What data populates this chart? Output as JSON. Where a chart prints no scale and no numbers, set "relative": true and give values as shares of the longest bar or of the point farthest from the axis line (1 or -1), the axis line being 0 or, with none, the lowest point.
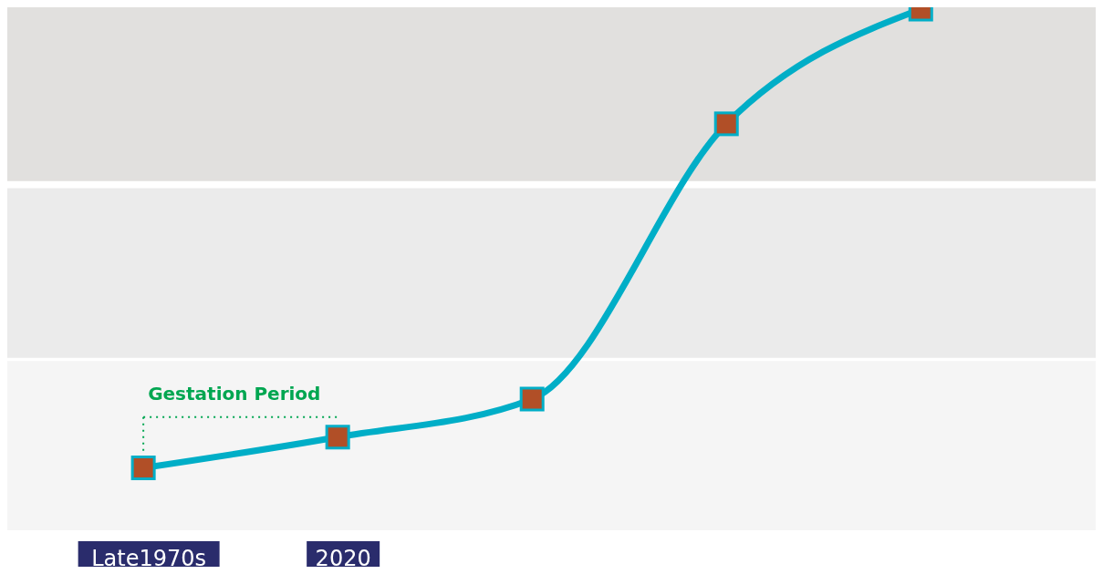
{
  "chart_data": {
    "type": "line",
    "relative": true,
    "categories": [
      "Late1970s",
      "2020",
      null,
      null,
      null
    ],
    "series": [
      {
        "color": "#00aec7",
        "values": [
          0,
          0.067,
          0.15,
          0.75,
          1
        ]
      }
    ],
    "marker": "square",
    "line_style": "solid",
    "grid": false,
    "legend": false,
    "bands": [
      {
        "axis": "y",
        "from": -0.136,
        "to": 0.233,
        "color": "#f5f5f5"
      },
      {
        "axis": "y",
        "from": 0.24,
        "to": 0.61,
        "color": "#ebebeb"
      },
      {
        "axis": "y",
        "from": 0.625,
        "to": 1.004,
        "color": "#e1e0de"
      }
    ],
    "annotations": [
      "Gestation Period"
    ]
  }
}
